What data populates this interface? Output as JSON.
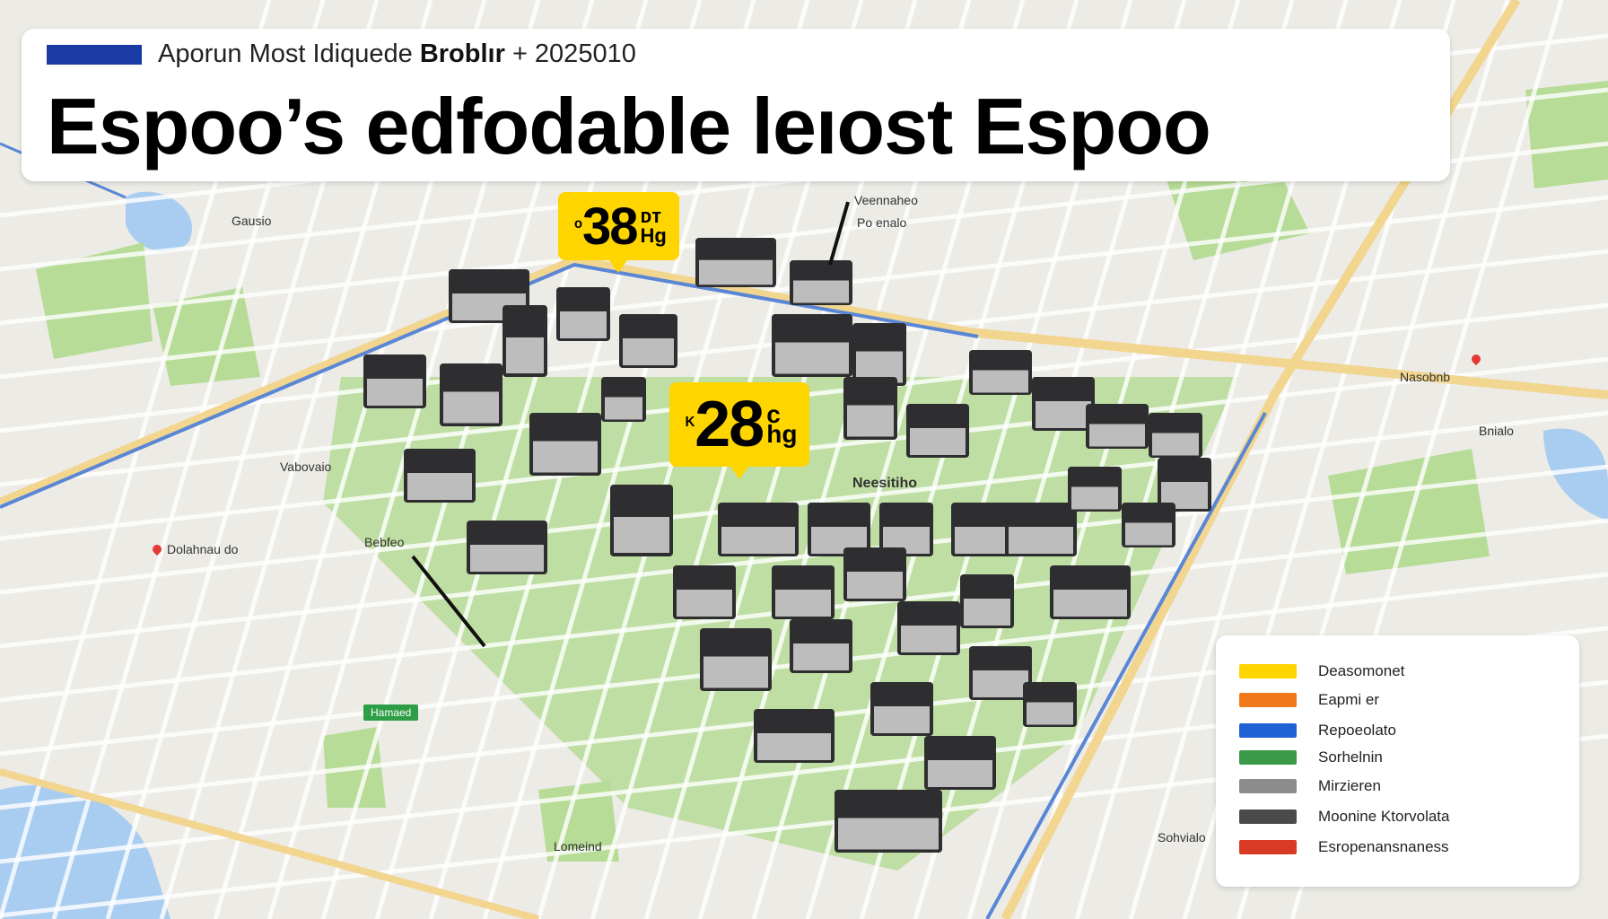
{
  "header": {
    "subtitle_regular": "Aporun Most Idiquede",
    "subtitle_bold": "Broblır",
    "subtitle_date": "+ 2025010",
    "title": "Espoo’s edfodable leıost Espoo",
    "accent_color": "#1a3aa6"
  },
  "price_tags": [
    {
      "prefix": "ᵒ",
      "value": "38",
      "unit_top": "ᴅᴛ",
      "unit_bottom": "Hg"
    },
    {
      "prefix": "ᴷ",
      "value": "28",
      "unit_top": "c",
      "unit_bottom": "hg"
    }
  ],
  "map_labels": [
    {
      "text": "Gausio",
      "pin": false
    },
    {
      "text": "Veennaheo",
      "pin": false
    },
    {
      "text": "Po enalo",
      "pin": false
    },
    {
      "text": "Dolahnau do",
      "pin": true
    },
    {
      "text": "Bebfeo",
      "pin": false
    },
    {
      "text": "Neesitiho",
      "pin": false
    },
    {
      "text": "Hamaed",
      "pin": false
    },
    {
      "text": "Bnialo",
      "pin": false
    },
    {
      "text": "Lomeind",
      "pin": false
    },
    {
      "text": "Sohvialo",
      "pin": false
    },
    {
      "text": "Vabovaio",
      "pin": false
    },
    {
      "text": "Nasobnb",
      "pin": false
    }
  ],
  "legend": {
    "items": [
      {
        "label": "Deasomonet",
        "color": "#ffd500"
      },
      {
        "label": "Eapmi er",
        "color": "#f07a1a"
      },
      {
        "label": "Repoeolato",
        "color": "#1e62d6"
      },
      {
        "label": "Sorhelnin",
        "color": "#3a9a48"
      },
      {
        "label": "Mirzieren",
        "color": "#8c8c8c"
      },
      {
        "label": "Moonine Ktorvolata",
        "color": "#4a4a4a"
      },
      {
        "label": "Esropenansnaness",
        "color": "#d83a26"
      }
    ]
  },
  "colors": {
    "map_background": "#ecebe6",
    "park": "#b7dc97",
    "road": "#ffffff",
    "highway": "#f2d58e",
    "water": "#a9cdf0",
    "rail": "#5a86d6",
    "building": "#2e2e30"
  }
}
